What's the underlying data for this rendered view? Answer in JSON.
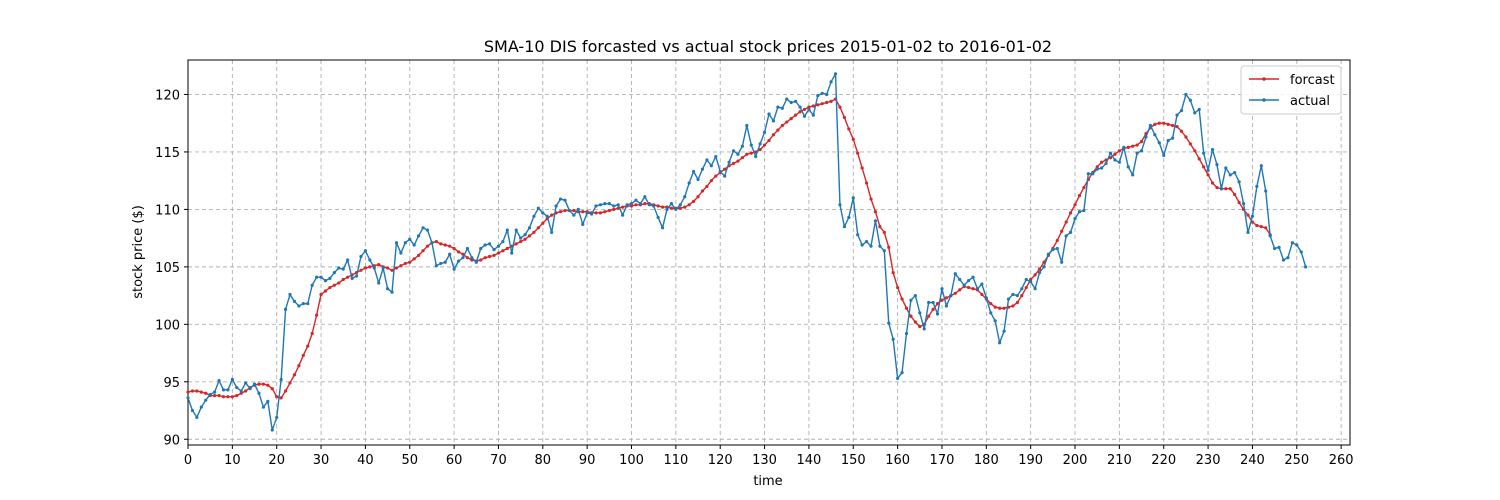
{
  "chart_data": {
    "type": "line",
    "title": "SMA-10 DIS forcasted vs actual stock prices 2015-01-02 to 2016-01-02",
    "xlabel": "time",
    "ylabel": "stock price ($)",
    "xlim": [
      0,
      262
    ],
    "ylim": [
      89.5,
      123
    ],
    "x_ticks": [
      0,
      10,
      20,
      30,
      40,
      50,
      60,
      70,
      80,
      90,
      100,
      110,
      120,
      130,
      140,
      150,
      160,
      170,
      180,
      190,
      200,
      210,
      220,
      230,
      240,
      250,
      260
    ],
    "y_ticks": [
      90,
      95,
      100,
      105,
      110,
      115,
      120
    ],
    "grid": true,
    "legend_position": "top-right",
    "series": [
      {
        "name": "forcast",
        "color": "#d62728",
        "x_start": 0,
        "values": [
          94.1,
          94.2,
          94.2,
          94.1,
          94.0,
          93.8,
          93.8,
          93.8,
          93.7,
          93.7,
          93.7,
          93.8,
          94.0,
          94.2,
          94.5,
          94.7,
          94.8,
          94.8,
          94.7,
          94.4,
          93.7,
          93.6,
          94.2,
          94.9,
          95.6,
          96.4,
          97.3,
          98.1,
          99.2,
          100.8,
          102.6,
          102.9,
          103.2,
          103.4,
          103.6,
          103.9,
          104.1,
          104.3,
          104.5,
          104.7,
          104.9,
          105.0,
          105.1,
          105.2,
          105.0,
          104.9,
          104.7,
          104.9,
          105.1,
          105.3,
          105.4,
          105.7,
          106.0,
          106.4,
          106.8,
          107.1,
          107.2,
          107.0,
          106.9,
          106.8,
          106.6,
          106.3,
          106.1,
          105.8,
          105.6,
          105.5,
          105.6,
          105.8,
          105.9,
          106.0,
          106.2,
          106.4,
          106.6,
          106.8,
          107.0,
          107.2,
          107.4,
          107.7,
          108.0,
          108.4,
          108.8,
          109.2,
          109.5,
          109.7,
          109.8,
          109.9,
          109.9,
          109.9,
          109.8,
          109.8,
          109.8,
          109.7,
          109.7,
          109.7,
          109.8,
          109.9,
          110.0,
          110.1,
          110.2,
          110.3,
          110.3,
          110.4,
          110.4,
          110.5,
          110.5,
          110.4,
          110.3,
          110.2,
          110.2,
          110.1,
          110.1,
          110.1,
          110.2,
          110.4,
          110.7,
          111.1,
          111.6,
          112.0,
          112.5,
          112.9,
          113.2,
          113.5,
          113.8,
          114.0,
          114.2,
          114.5,
          114.8,
          114.9,
          115.0,
          115.2,
          115.6,
          116.0,
          116.5,
          116.9,
          117.3,
          117.6,
          117.9,
          118.2,
          118.5,
          118.7,
          118.9,
          119.0,
          119.1,
          119.2,
          119.3,
          119.4,
          119.6,
          118.9,
          118.0,
          117.0,
          116.1,
          114.9,
          113.6,
          112.3,
          110.9,
          109.8,
          108.5,
          108.0,
          106.7,
          104.5,
          103.2,
          102.2,
          101.4,
          100.7,
          100.2,
          99.8,
          100.0,
          100.7,
          101.3,
          101.8,
          102.1,
          102.3,
          102.5,
          102.7,
          103.0,
          103.3,
          103.2,
          103.1,
          103.0,
          102.6,
          102.2,
          101.8,
          101.5,
          101.4,
          101.4,
          101.5,
          101.6,
          101.9,
          102.5,
          103.2,
          103.9,
          104.3,
          104.8,
          105.4,
          106.0,
          106.6,
          107.3,
          108.1,
          108.9,
          109.7,
          110.4,
          111.2,
          111.9,
          112.6,
          113.2,
          113.7,
          114.1,
          114.3,
          114.5,
          114.8,
          115.1,
          115.3,
          115.4,
          115.5,
          115.6,
          115.9,
          116.6,
          117.1,
          117.4,
          117.5,
          117.5,
          117.4,
          117.3,
          117.2,
          116.8,
          116.3,
          115.7,
          115.1,
          114.4,
          113.7,
          113.0,
          112.3,
          111.9,
          111.8,
          111.8,
          111.8,
          111.3,
          110.6,
          110.0,
          109.5,
          108.9,
          108.6,
          108.5,
          108.4,
          107.8
        ]
      },
      {
        "name": "actual",
        "color": "#1f77b4",
        "x_start": 0,
        "values": [
          93.6,
          92.5,
          91.9,
          92.8,
          93.4,
          93.9,
          94.1,
          95.1,
          94.3,
          94.3,
          95.2,
          94.5,
          94.2,
          94.9,
          94.4,
          94.8,
          94.0,
          92.8,
          93.3,
          90.8,
          91.9,
          95.2,
          101.3,
          102.6,
          102.0,
          101.6,
          101.8,
          101.8,
          103.4,
          104.1,
          104.1,
          103.8,
          104.0,
          104.5,
          104.9,
          104.8,
          105.6,
          104.0,
          104.2,
          105.9,
          106.4,
          105.6,
          104.9,
          103.6,
          104.9,
          103.1,
          102.8,
          107.1,
          106.2,
          107.1,
          107.4,
          106.9,
          107.7,
          108.4,
          108.2,
          107.1,
          105.1,
          105.3,
          105.4,
          106.1,
          104.8,
          105.5,
          105.8,
          106.6,
          105.8,
          105.4,
          106.6,
          106.9,
          107.0,
          106.5,
          106.8,
          107.2,
          108.2,
          106.2,
          108.2,
          107.5,
          107.8,
          108.4,
          109.4,
          110.1,
          109.7,
          109.4,
          108.0,
          110.3,
          110.9,
          110.8,
          109.9,
          109.5,
          110.0,
          108.7,
          109.7,
          109.6,
          110.3,
          110.4,
          110.5,
          110.5,
          110.3,
          110.4,
          109.5,
          110.4,
          110.5,
          110.8,
          110.5,
          111.1,
          110.4,
          110.3,
          109.3,
          108.4,
          110.0,
          110.5,
          110.0,
          110.4,
          111.1,
          112.3,
          113.3,
          112.6,
          113.5,
          114.3,
          113.8,
          114.6,
          113.3,
          112.9,
          114.1,
          115.1,
          114.8,
          115.5,
          117.3,
          115.6,
          114.6,
          115.7,
          116.7,
          118.3,
          117.7,
          118.9,
          118.8,
          119.6,
          119.3,
          119.4,
          118.9,
          118.1,
          118.7,
          118.2,
          119.9,
          120.1,
          120.0,
          121.1,
          121.8,
          110.4,
          108.5,
          109.3,
          111.0,
          107.8,
          106.9,
          107.2,
          106.8,
          109.0,
          106.8,
          106.4,
          100.1,
          98.7,
          95.3,
          95.8,
          99.2,
          102.1,
          102.5,
          101.0,
          99.6,
          101.9,
          101.9,
          100.9,
          103.1,
          101.6,
          102.5,
          104.4,
          103.9,
          103.4,
          103.8,
          104.1,
          103.1,
          103.5,
          102.3,
          101.0,
          100.3,
          98.4,
          99.4,
          102.2,
          102.6,
          102.5,
          103.1,
          103.9,
          103.7,
          103.1,
          104.5,
          105.0,
          106.1,
          106.5,
          106.6,
          105.4,
          107.7,
          108.0,
          109.2,
          109.8,
          109.9,
          113.1,
          113.1,
          113.5,
          113.6,
          114.0,
          114.9,
          114.3,
          114.1,
          115.4,
          113.7,
          113.0,
          114.9,
          115.1,
          116.3,
          117.3,
          116.5,
          115.8,
          114.7,
          116.0,
          116.2,
          118.2,
          118.6,
          120.0,
          119.5,
          118.4,
          118.7,
          114.9,
          113.4,
          115.2,
          113.9,
          111.8,
          113.6,
          113.0,
          113.2,
          112.4,
          110.5,
          108.0,
          109.4,
          112.0,
          113.8,
          111.6,
          107.7,
          106.6,
          106.7,
          105.6,
          105.8,
          107.1,
          106.9,
          106.3,
          105.0
        ]
      }
    ]
  }
}
